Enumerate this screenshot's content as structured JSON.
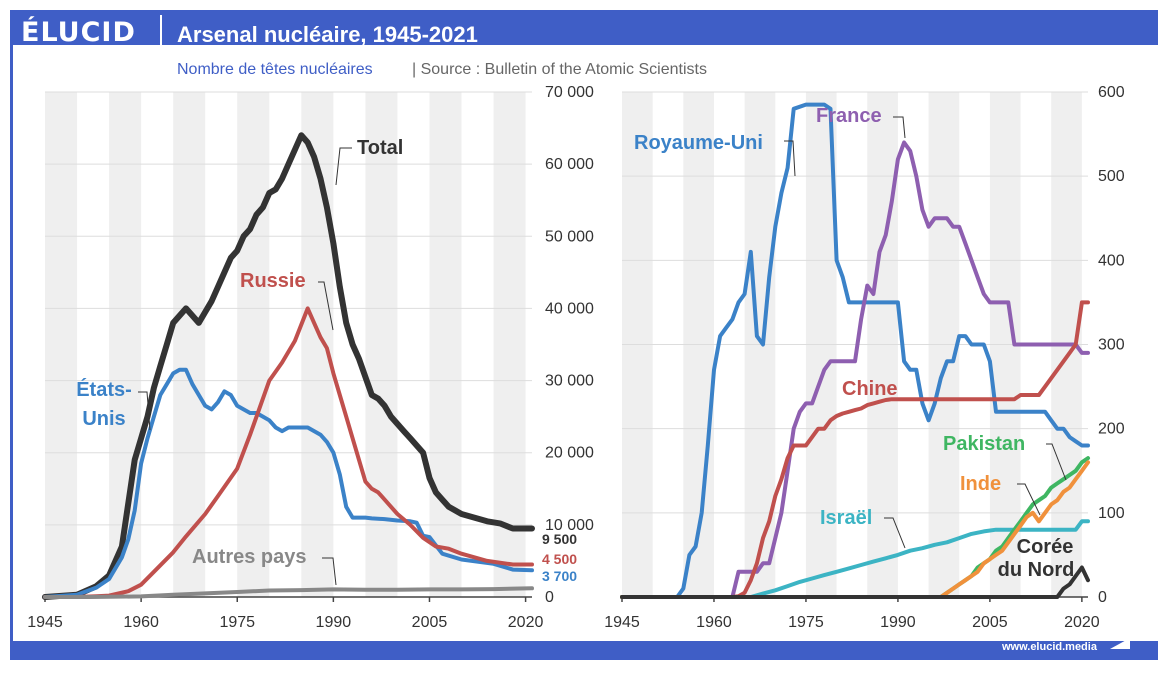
{
  "header": {
    "logo": "ÉLUCID",
    "title": "Arsenal nucléaire, 1945-2021",
    "subtitle": "Nombre de têtes nucléaires",
    "source": "Source : Bulletin of the Atomic Scientists",
    "footer": "www.elucid.media"
  },
  "colors": {
    "frame": "#3f5ec6",
    "total": "#333333",
    "usa": "#3b82c8",
    "russia": "#c0504d",
    "others": "#888888",
    "uk": "#3b82c8",
    "france": "#8e5fb0",
    "china": "#c0504d",
    "israel": "#3cb4c4",
    "pakistan": "#3fb662",
    "india": "#f0913c",
    "nk": "#333333"
  },
  "chart_data": [
    {
      "type": "line",
      "title": "",
      "xlim": [
        1945,
        2021
      ],
      "ylim": [
        0,
        70000
      ],
      "x_ticks": [
        "1945",
        "1960",
        "1975",
        "1990",
        "2005",
        "2020"
      ],
      "y_ticks": [
        "0",
        "10 000",
        "20 000",
        "30 000",
        "40 000",
        "50 000",
        "60 000",
        "70 000"
      ],
      "grid": true,
      "end_labels": [
        "9 500",
        "4 500",
        "3 700"
      ],
      "series": [
        {
          "name": "Total",
          "key": "total",
          "color_key": "total",
          "x": [
            1945,
            1950,
            1953,
            1955,
            1957,
            1958,
            1959,
            1960,
            1961,
            1962,
            1963,
            1964,
            1965,
            1966,
            1967,
            1968,
            1969,
            1970,
            1971,
            1972,
            1973,
            1974,
            1975,
            1976,
            1977,
            1978,
            1979,
            1980,
            1981,
            1982,
            1983,
            1984,
            1985,
            1986,
            1987,
            1988,
            1989,
            1990,
            1991,
            1992,
            1993,
            1994,
            1995,
            1996,
            1997,
            1998,
            1999,
            2000,
            2001,
            2002,
            2003,
            2004,
            2005,
            2006,
            2007,
            2008,
            2009,
            2010,
            2012,
            2014,
            2016,
            2018,
            2021
          ],
          "y": [
            0,
            300,
            1500,
            3000,
            7000,
            13000,
            19000,
            22000,
            25000,
            29000,
            32000,
            35000,
            38000,
            39000,
            40000,
            39000,
            38000,
            39500,
            41000,
            43000,
            45000,
            47000,
            48000,
            50000,
            51000,
            53000,
            54000,
            56000,
            56500,
            58000,
            60000,
            62000,
            64000,
            63000,
            61000,
            58000,
            54000,
            49000,
            43000,
            38000,
            35000,
            33000,
            30500,
            28000,
            27500,
            26500,
            25000,
            24000,
            23000,
            22000,
            21000,
            20000,
            16500,
            14500,
            13500,
            12500,
            12000,
            11500,
            11000,
            10500,
            10200,
            9500,
            9500
          ]
        },
        {
          "name": "États-Unis",
          "key": "usa",
          "color_key": "usa",
          "x": [
            1945,
            1950,
            1953,
            1955,
            1957,
            1958,
            1959,
            1960,
            1961,
            1962,
            1963,
            1964,
            1965,
            1966,
            1967,
            1968,
            1969,
            1970,
            1971,
            1972,
            1973,
            1974,
            1975,
            1976,
            1977,
            1978,
            1979,
            1980,
            1981,
            1982,
            1983,
            1984,
            1985,
            1986,
            1987,
            1988,
            1989,
            1990,
            1991,
            1992,
            1993,
            1994,
            1995,
            1996,
            1998,
            2000,
            2002,
            2003,
            2004,
            2005,
            2007,
            2010,
            2015,
            2018,
            2021
          ],
          "y": [
            0,
            300,
            1300,
            2500,
            5500,
            8000,
            12000,
            18500,
            22000,
            25000,
            28000,
            29500,
            31000,
            31500,
            31500,
            29500,
            28000,
            26500,
            26000,
            27000,
            28500,
            28000,
            26500,
            26000,
            25500,
            25500,
            25000,
            24500,
            23500,
            23000,
            23500,
            23500,
            23500,
            23500,
            23000,
            22500,
            21500,
            20000,
            17000,
            12500,
            11000,
            11000,
            11000,
            10900,
            10800,
            10600,
            10500,
            10300,
            8500,
            8300,
            6000,
            5200,
            4600,
            3800,
            3700
          ]
        },
        {
          "name": "Russie",
          "key": "russia",
          "color_key": "russia",
          "x": [
            1945,
            1948,
            1950,
            1953,
            1955,
            1958,
            1960,
            1962,
            1965,
            1967,
            1970,
            1972,
            1975,
            1977,
            1980,
            1982,
            1984,
            1986,
            1987,
            1988,
            1989,
            1990,
            1991,
            1992,
            1993,
            1994,
            1995,
            1996,
            1997,
            1998,
            2000,
            2002,
            2004,
            2006,
            2008,
            2010,
            2014,
            2018,
            2021
          ],
          "y": [
            0,
            0,
            0,
            100,
            200,
            800,
            1700,
            3500,
            6200,
            8400,
            11500,
            14000,
            17800,
            22500,
            30000,
            32500,
            35500,
            40000,
            38000,
            36000,
            34500,
            31000,
            28000,
            25000,
            22000,
            19000,
            16000,
            15000,
            14500,
            13500,
            11500,
            10000,
            8200,
            7000,
            6700,
            6000,
            5000,
            4500,
            4500
          ]
        },
        {
          "name": "Autres pays",
          "key": "others",
          "color_key": "others",
          "x": [
            1945,
            1952,
            1960,
            1965,
            1970,
            1975,
            1980,
            1985,
            1990,
            1995,
            2000,
            2005,
            2010,
            2015,
            2021
          ],
          "y": [
            0,
            0,
            80,
            300,
            500,
            700,
            900,
            950,
            1050,
            1000,
            1000,
            1050,
            1050,
            1100,
            1200
          ]
        }
      ],
      "labels": {
        "total": "Total",
        "russia": "Russie",
        "usa_line1": "États-",
        "usa_line2": "Unis",
        "others": "Autres pays"
      }
    },
    {
      "type": "line",
      "title": "",
      "xlim": [
        1945,
        2021
      ],
      "ylim": [
        0,
        600
      ],
      "x_ticks": [
        "1945",
        "1960",
        "1975",
        "1990",
        "2005",
        "2020"
      ],
      "y_ticks": [
        "0",
        "100",
        "200",
        "300",
        "400",
        "500",
        "600"
      ],
      "grid": true,
      "series": [
        {
          "name": "Royaume-Uni",
          "key": "uk",
          "color_key": "uk",
          "x": [
            1945,
            1954,
            1955,
            1956,
            1957,
            1958,
            1959,
            1960,
            1961,
            1962,
            1963,
            1964,
            1965,
            1966,
            1967,
            1968,
            1969,
            1970,
            1971,
            1972,
            1973,
            1975,
            1978,
            1979,
            1980,
            1981,
            1982,
            1984,
            1985,
            1986,
            1987,
            1988,
            1989,
            1990,
            1991,
            1992,
            1993,
            1994,
            1995,
            1996,
            1997,
            1998,
            1999,
            2000,
            2001,
            2002,
            2003,
            2004,
            2005,
            2006,
            2007,
            2008,
            2009,
            2010,
            2012,
            2013,
            2014,
            2015,
            2016,
            2017,
            2018,
            2019,
            2020,
            2021
          ],
          "y": [
            0,
            0,
            10,
            50,
            60,
            100,
            180,
            270,
            310,
            320,
            330,
            350,
            360,
            410,
            310,
            300,
            380,
            440,
            480,
            510,
            580,
            585,
            585,
            580,
            400,
            380,
            350,
            350,
            350,
            350,
            350,
            350,
            350,
            350,
            280,
            270,
            270,
            230,
            210,
            230,
            260,
            280,
            280,
            310,
            310,
            300,
            300,
            300,
            280,
            220,
            220,
            220,
            220,
            220,
            220,
            220,
            220,
            210,
            200,
            200,
            190,
            185,
            180,
            180
          ]
        },
        {
          "name": "France",
          "key": "france",
          "color_key": "france",
          "x": [
            1945,
            1963,
            1964,
            1965,
            1966,
            1967,
            1968,
            1969,
            1970,
            1971,
            1972,
            1973,
            1974,
            1975,
            1976,
            1977,
            1978,
            1979,
            1980,
            1981,
            1982,
            1983,
            1984,
            1985,
            1986,
            1987,
            1988,
            1989,
            1990,
            1991,
            1992,
            1993,
            1994,
            1995,
            1996,
            1997,
            1998,
            1999,
            2000,
            2001,
            2002,
            2003,
            2004,
            2005,
            2006,
            2007,
            2008,
            2009,
            2010,
            2015,
            2019,
            2020,
            2021
          ],
          "y": [
            0,
            0,
            30,
            30,
            30,
            30,
            40,
            40,
            70,
            100,
            150,
            200,
            220,
            230,
            230,
            250,
            270,
            280,
            280,
            280,
            280,
            280,
            330,
            370,
            360,
            410,
            430,
            470,
            520,
            540,
            530,
            500,
            460,
            440,
            450,
            450,
            450,
            440,
            440,
            420,
            400,
            380,
            360,
            350,
            350,
            350,
            350,
            300,
            300,
            300,
            300,
            290,
            290
          ]
        },
        {
          "name": "Chine",
          "key": "china",
          "color_key": "china",
          "x": [
            1945,
            1963,
            1964,
            1965,
            1966,
            1967,
            1968,
            1969,
            1970,
            1971,
            1972,
            1973,
            1974,
            1975,
            1976,
            1977,
            1978,
            1979,
            1980,
            1981,
            1982,
            1983,
            1984,
            1985,
            1986,
            1987,
            1988,
            1989,
            1990,
            1991,
            1992,
            1993,
            1994,
            1995,
            1996,
            1997,
            1998,
            1999,
            2000,
            2001,
            2002,
            2003,
            2004,
            2005,
            2006,
            2007,
            2008,
            2009,
            2010,
            2011,
            2012,
            2013,
            2014,
            2015,
            2016,
            2017,
            2018,
            2019,
            2020,
            2021
          ],
          "y": [
            0,
            0,
            1,
            5,
            20,
            40,
            70,
            90,
            120,
            140,
            165,
            180,
            180,
            180,
            190,
            200,
            200,
            210,
            215,
            218,
            220,
            222,
            224,
            228,
            230,
            232,
            234,
            235,
            235,
            235,
            235,
            235,
            235,
            235,
            235,
            235,
            235,
            235,
            235,
            235,
            235,
            235,
            235,
            235,
            235,
            235,
            235,
            235,
            240,
            240,
            240,
            240,
            250,
            260,
            270,
            280,
            290,
            300,
            350,
            350
          ]
        },
        {
          "name": "Israël",
          "key": "israel",
          "color_key": "israel",
          "x": [
            1945,
            1966,
            1967,
            1968,
            1970,
            1972,
            1974,
            1976,
            1978,
            1980,
            1982,
            1984,
            1986,
            1988,
            1990,
            1992,
            1994,
            1996,
            1998,
            2000,
            2002,
            2004,
            2006,
            2008,
            2010,
            2012,
            2014,
            2016,
            2018,
            2019,
            2020,
            2021
          ],
          "y": [
            0,
            0,
            2,
            4,
            8,
            13,
            18,
            22,
            26,
            30,
            34,
            38,
            42,
            46,
            50,
            55,
            58,
            62,
            65,
            70,
            75,
            78,
            80,
            80,
            80,
            80,
            80,
            80,
            80,
            80,
            90,
            90
          ]
        },
        {
          "name": "Pakistan",
          "key": "pakistan",
          "color_key": "pakistan",
          "x": [
            1945,
            1997,
            1998,
            1999,
            2000,
            2001,
            2002,
            2003,
            2004,
            2005,
            2006,
            2007,
            2008,
            2009,
            2010,
            2011,
            2012,
            2013,
            2014,
            2015,
            2016,
            2017,
            2018,
            2019,
            2020,
            2021
          ],
          "y": [
            0,
            0,
            5,
            10,
            15,
            20,
            25,
            35,
            40,
            45,
            55,
            60,
            70,
            80,
            90,
            100,
            110,
            115,
            120,
            130,
            135,
            140,
            145,
            150,
            160,
            165
          ]
        },
        {
          "name": "Inde",
          "key": "india",
          "color_key": "india",
          "x": [
            1945,
            1997,
            1998,
            1999,
            2000,
            2001,
            2002,
            2003,
            2004,
            2005,
            2006,
            2007,
            2008,
            2009,
            2010,
            2011,
            2012,
            2013,
            2014,
            2015,
            2016,
            2017,
            2018,
            2019,
            2020,
            2021
          ],
          "y": [
            0,
            0,
            5,
            10,
            15,
            20,
            25,
            30,
            40,
            45,
            50,
            55,
            65,
            75,
            85,
            95,
            100,
            90,
            100,
            110,
            115,
            125,
            130,
            140,
            150,
            160
          ]
        },
        {
          "name": "Corée du Nord",
          "key": "nk",
          "color_key": "nk",
          "x": [
            1945,
            2016,
            2017,
            2018,
            2019,
            2020,
            2021
          ],
          "y": [
            0,
            0,
            10,
            15,
            25,
            35,
            20
          ]
        }
      ],
      "labels": {
        "uk": "Royaume-Uni",
        "france": "France",
        "china": "Chine",
        "pakistan": "Pakistan",
        "india": "Inde",
        "israel": "Israël",
        "nk_line1": "Corée",
        "nk_line2": "du Nord"
      }
    }
  ]
}
